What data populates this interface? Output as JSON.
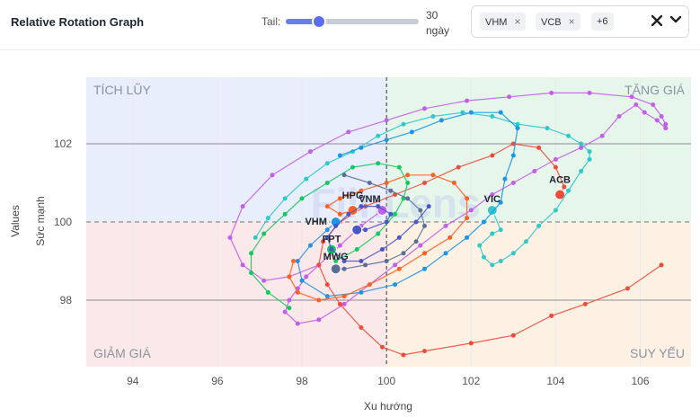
{
  "header": {
    "title": "Relative Rotation Graph",
    "tail_label": "Tail:",
    "tail_value_line1": "30",
    "tail_value_line2": "ngày",
    "tail_fraction": 0.25,
    "chips": [
      "VHM",
      "VCB"
    ],
    "chip_remove_glyph": "×",
    "more_label": "+6",
    "clear_icon": "x-icon",
    "dropdown_icon": "chevron-down-icon"
  },
  "chart_data": {
    "type": "scatter",
    "title": "Relative Rotation Graph",
    "xlabel": "Xu hướng",
    "ylabel": "Values",
    "ylabel2": "Sức mạnh",
    "xlim": [
      92.9,
      107.2
    ],
    "ylim": [
      96.3,
      103.7
    ],
    "xticks": [
      "94",
      "96",
      "98",
      "100",
      "102",
      "104",
      "106"
    ],
    "xtick_values": [
      94,
      96,
      98,
      100,
      102,
      104,
      106
    ],
    "yticks": [
      "98",
      "100",
      "102"
    ],
    "ytick_values": [
      98,
      100,
      102
    ],
    "center": [
      100,
      100
    ],
    "quadrants": {
      "top_left": {
        "label": "TÍCH LŨY",
        "color": "#e8eefc"
      },
      "top_right": {
        "label": "TĂNG GIÁ",
        "color": "#e6f6ea"
      },
      "bottom_left": {
        "label": "GIẢM GIÁ",
        "color": "#fbe8e8"
      },
      "bottom_right": {
        "label": "SUY YẾU",
        "color": "#fdf1e3"
      }
    },
    "watermark": "FiinLens",
    "series": [
      {
        "name": "VNM",
        "color": "#c35ee8",
        "points": [
          [
            98.4,
            98.9
          ],
          [
            98.1,
            98.6
          ],
          [
            97.9,
            98.3
          ],
          [
            97.7,
            98.0
          ],
          [
            97.6,
            97.7
          ],
          [
            97.9,
            97.4
          ],
          [
            98.4,
            97.5
          ],
          [
            99.0,
            97.9
          ],
          [
            99.6,
            98.4
          ],
          [
            100.2,
            98.9
          ],
          [
            100.8,
            99.4
          ],
          [
            101.4,
            99.9
          ],
          [
            102.0,
            100.3
          ],
          [
            102.5,
            100.7
          ],
          [
            103.0,
            101.0
          ],
          [
            103.5,
            101.3
          ],
          [
            104.0,
            101.6
          ],
          [
            104.6,
            101.9
          ],
          [
            105.1,
            102.2
          ],
          [
            105.5,
            102.7
          ],
          [
            105.9,
            103.0
          ],
          [
            106.1,
            102.8
          ],
          [
            106.4,
            102.6
          ],
          [
            106.6,
            102.4
          ],
          [
            106.6,
            102.5
          ],
          [
            106.5,
            102.7
          ],
          [
            106.3,
            103.0
          ],
          [
            105.8,
            103.2
          ],
          [
            104.8,
            103.3
          ],
          [
            103.9,
            103.3
          ],
          [
            102.9,
            103.2
          ],
          [
            101.9,
            103.1
          ],
          [
            100.9,
            102.9
          ],
          [
            100.0,
            102.6
          ],
          [
            99.1,
            102.3
          ],
          [
            98.2,
            101.8
          ],
          [
            97.3,
            101.2
          ],
          [
            96.6,
            100.4
          ],
          [
            96.3,
            99.6
          ],
          [
            96.6,
            98.9
          ],
          [
            97.1,
            98.5
          ],
          [
            97.7,
            98.6
          ],
          [
            98.4,
            98.9
          ],
          [
            98.9,
            99.4
          ],
          [
            99.4,
            99.9
          ],
          [
            99.9,
            100.3
          ]
        ]
      },
      {
        "name": "ACB",
        "color": "#ef4b3c",
        "points": [
          [
            106.5,
            98.9
          ],
          [
            105.7,
            98.3
          ],
          [
            104.7,
            97.9
          ],
          [
            103.9,
            97.6
          ],
          [
            103.0,
            97.1
          ],
          [
            102.0,
            96.9
          ],
          [
            100.9,
            96.7
          ],
          [
            100.4,
            96.6
          ],
          [
            99.9,
            96.8
          ],
          [
            99.4,
            97.3
          ],
          [
            98.9,
            97.9
          ],
          [
            98.6,
            98.4
          ],
          [
            98.4,
            98.9
          ],
          [
            98.5,
            99.5
          ],
          [
            98.9,
            100.0
          ],
          [
            99.5,
            100.4
          ],
          [
            100.2,
            100.7
          ],
          [
            100.9,
            101.0
          ],
          [
            101.7,
            101.4
          ],
          [
            102.5,
            101.7
          ],
          [
            103.0,
            102.0
          ],
          [
            103.6,
            101.9
          ],
          [
            104.0,
            101.4
          ],
          [
            104.2,
            100.9
          ],
          [
            104.1,
            100.7
          ]
        ]
      },
      {
        "name": "VIC",
        "color": "#2ec9c9",
        "points": [
          [
            96.9,
            99.6
          ],
          [
            97.2,
            100.1
          ],
          [
            97.6,
            100.6
          ],
          [
            98.1,
            101.1
          ],
          [
            98.6,
            101.5
          ],
          [
            99.2,
            101.8
          ],
          [
            99.8,
            102.2
          ],
          [
            100.4,
            102.5
          ],
          [
            101.1,
            102.7
          ],
          [
            101.8,
            102.8
          ],
          [
            102.5,
            102.7
          ],
          [
            103.1,
            102.5
          ],
          [
            103.8,
            102.4
          ],
          [
            104.3,
            102.2
          ],
          [
            104.6,
            102.0
          ],
          [
            104.8,
            101.8
          ],
          [
            104.8,
            101.6
          ],
          [
            104.6,
            101.3
          ],
          [
            104.3,
            100.8
          ],
          [
            104.0,
            100.3
          ],
          [
            103.6,
            99.9
          ],
          [
            103.3,
            99.5
          ],
          [
            103.0,
            99.2
          ],
          [
            102.7,
            99.0
          ],
          [
            102.5,
            98.9
          ],
          [
            102.3,
            99.1
          ],
          [
            102.2,
            99.4
          ],
          [
            102.5,
            99.7
          ],
          [
            102.7,
            99.8
          ],
          [
            102.5,
            100.3
          ]
        ]
      },
      {
        "name": "VHM",
        "color": "#1b95e6",
        "points": [
          [
            98.9,
            101.7
          ],
          [
            99.4,
            101.9
          ],
          [
            100.0,
            102.1
          ],
          [
            100.6,
            102.3
          ],
          [
            101.3,
            102.6
          ],
          [
            102.0,
            102.8
          ],
          [
            102.7,
            102.8
          ],
          [
            103.1,
            102.4
          ],
          [
            103.0,
            101.7
          ],
          [
            102.8,
            101.1
          ],
          [
            102.7,
            100.5
          ],
          [
            102.3,
            100.0
          ],
          [
            101.9,
            99.6
          ],
          [
            101.4,
            99.2
          ],
          [
            100.9,
            98.8
          ],
          [
            100.2,
            98.4
          ],
          [
            99.4,
            98.2
          ],
          [
            98.6,
            98.1
          ],
          [
            98.0,
            98.5
          ],
          [
            97.9,
            99.0
          ],
          [
            98.2,
            99.4
          ],
          [
            98.6,
            99.8
          ],
          [
            98.8,
            100.0
          ]
        ]
      },
      {
        "name": "HPG",
        "color": "#ff5f1f",
        "points": [
          [
            97.8,
            99.0
          ],
          [
            97.7,
            98.6
          ],
          [
            97.9,
            98.2
          ],
          [
            98.4,
            98.0
          ],
          [
            99.0,
            98.1
          ],
          [
            99.6,
            98.4
          ],
          [
            100.3,
            98.8
          ],
          [
            100.9,
            99.2
          ],
          [
            101.5,
            99.6
          ],
          [
            101.9,
            100.1
          ],
          [
            101.9,
            100.6
          ],
          [
            101.6,
            101.0
          ],
          [
            101.1,
            101.2
          ],
          [
            100.5,
            101.2
          ],
          [
            100.0,
            101.0
          ],
          [
            99.4,
            100.8
          ],
          [
            98.9,
            100.6
          ],
          [
            98.6,
            100.4
          ],
          [
            98.9,
            100.2
          ],
          [
            99.2,
            100.3
          ]
        ]
      },
      {
        "name": "FPT",
        "color": "#14c95f",
        "points": [
          [
            97.7,
            97.8
          ],
          [
            97.2,
            98.2
          ],
          [
            96.8,
            98.7
          ],
          [
            96.8,
            99.2
          ],
          [
            97.1,
            99.7
          ],
          [
            97.6,
            100.2
          ],
          [
            98.0,
            100.6
          ],
          [
            98.6,
            101.0
          ],
          [
            99.2,
            101.4
          ],
          [
            99.8,
            101.5
          ],
          [
            100.3,
            101.4
          ],
          [
            100.5,
            101.0
          ],
          [
            100.4,
            100.6
          ],
          [
            100.2,
            100.2
          ],
          [
            99.8,
            99.7
          ],
          [
            99.3,
            99.3
          ],
          [
            98.8,
            99.0
          ],
          [
            98.7,
            99.3
          ]
        ]
      },
      {
        "name": "MWG",
        "color": "#5a6f96",
        "points": [
          [
            99.0,
            101.2
          ],
          [
            99.6,
            101.0
          ],
          [
            100.1,
            100.8
          ],
          [
            100.5,
            100.6
          ],
          [
            100.8,
            100.3
          ],
          [
            100.9,
            99.9
          ],
          [
            100.7,
            99.5
          ],
          [
            100.4,
            99.2
          ],
          [
            100.0,
            99.0
          ],
          [
            99.5,
            98.9
          ],
          [
            99.0,
            98.8
          ],
          [
            98.8,
            98.8
          ]
        ]
      },
      {
        "name": "VCB",
        "color": "#4a55c8",
        "points": [
          [
            101.0,
            100.4
          ],
          [
            100.7,
            100.0
          ],
          [
            100.3,
            99.6
          ],
          [
            99.9,
            99.3
          ],
          [
            99.4,
            99.0
          ],
          [
            99.0,
            99.0
          ],
          [
            98.7,
            99.3
          ],
          [
            98.6,
            99.6
          ],
          [
            98.8,
            99.9
          ],
          [
            99.1,
            100.2
          ],
          [
            99.4,
            100.4
          ],
          [
            99.8,
            100.4
          ],
          [
            100.1,
            100.2
          ],
          [
            100.0,
            100.0
          ],
          [
            99.5,
            99.8
          ],
          [
            99.3,
            99.8
          ]
        ]
      }
    ]
  }
}
